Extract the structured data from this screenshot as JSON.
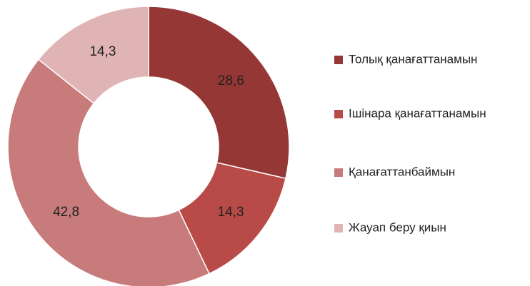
{
  "chart_data": {
    "type": "donut",
    "categories": [
      "Толық қанағаттанамын",
      "Ішінара қанағаттанамын",
      "Қанағаттанбаймын",
      "Жауап беру қиын"
    ],
    "values": [
      28.6,
      14.3,
      42.8,
      14.3
    ],
    "value_labels": [
      "28,6",
      "14,3",
      "42,8",
      "14,3"
    ],
    "colors": [
      "#953735",
      "#b84a48",
      "#c77b7b",
      "#e0b4b4"
    ],
    "legend": "right"
  }
}
